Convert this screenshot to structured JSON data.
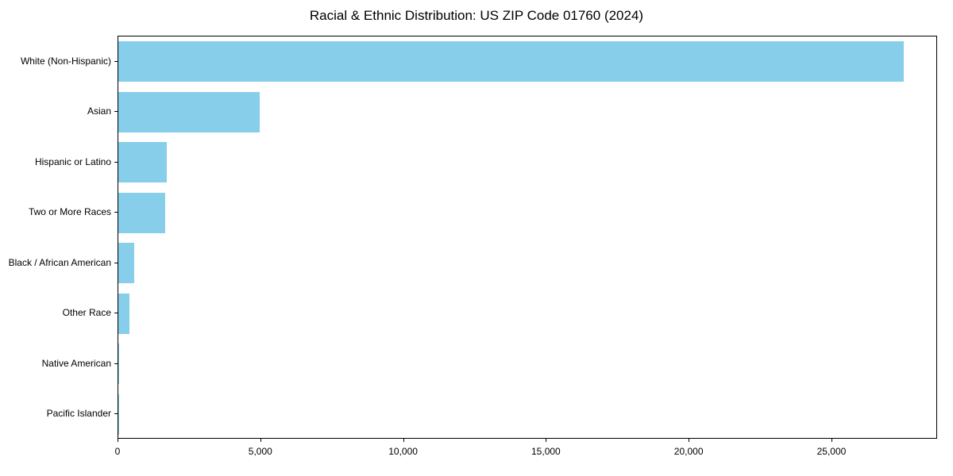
{
  "chart_data": {
    "type": "bar",
    "orientation": "horizontal",
    "title": "Racial & Ethnic Distribution: US ZIP Code 01760 (2024)",
    "categories": [
      "White (Non-Hispanic)",
      "Asian",
      "Hispanic or Latino",
      "Two or More Races",
      "Black / African American",
      "Other Race",
      "Native American",
      "Pacific Islander"
    ],
    "values": [
      27500,
      4950,
      1700,
      1650,
      550,
      400,
      35,
      10
    ],
    "xlabel": "",
    "ylabel": "",
    "xlim": [
      0,
      28700
    ],
    "x_ticks": [
      0,
      5000,
      10000,
      15000,
      20000,
      25000
    ],
    "x_tick_labels": [
      "0",
      "5,000",
      "10,000",
      "15,000",
      "20,000",
      "25,000"
    ],
    "bar_color": "#87CEEB",
    "grid": false,
    "legend": null
  }
}
